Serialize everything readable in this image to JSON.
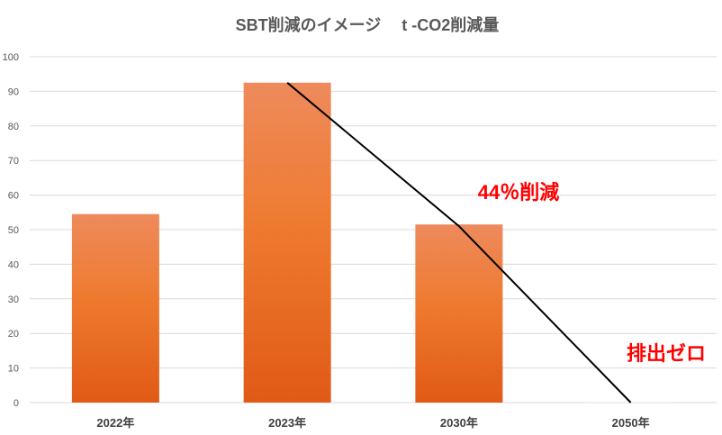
{
  "chart_data": {
    "type": "bar",
    "title": "SBT削減のイメージ　 t -CO2削減量",
    "categories": [
      "2022年",
      "2023年",
      "2030年",
      "2050年"
    ],
    "values": [
      54.5,
      92.5,
      51.5,
      0
    ],
    "ylim": [
      0,
      100
    ],
    "yticks": [
      0,
      10,
      20,
      30,
      40,
      50,
      60,
      70,
      80,
      90,
      100
    ],
    "grid": true,
    "legend": "none",
    "trend_line": {
      "x": [
        "2023年",
        "2030年",
        "2050年"
      ],
      "y": [
        92.5,
        51,
        0
      ]
    },
    "annotations": [
      {
        "text": "44％削減",
        "color": "#ff0000"
      },
      {
        "text": "排出ゼロ",
        "color": "#ff0000"
      }
    ],
    "colors": {
      "bar_top": "#ee8a5c",
      "bar_mid": "#ee7a2f",
      "bar_bottom": "#e05a16",
      "grid": "#d9d9d9",
      "trend_line": "#000000"
    }
  }
}
